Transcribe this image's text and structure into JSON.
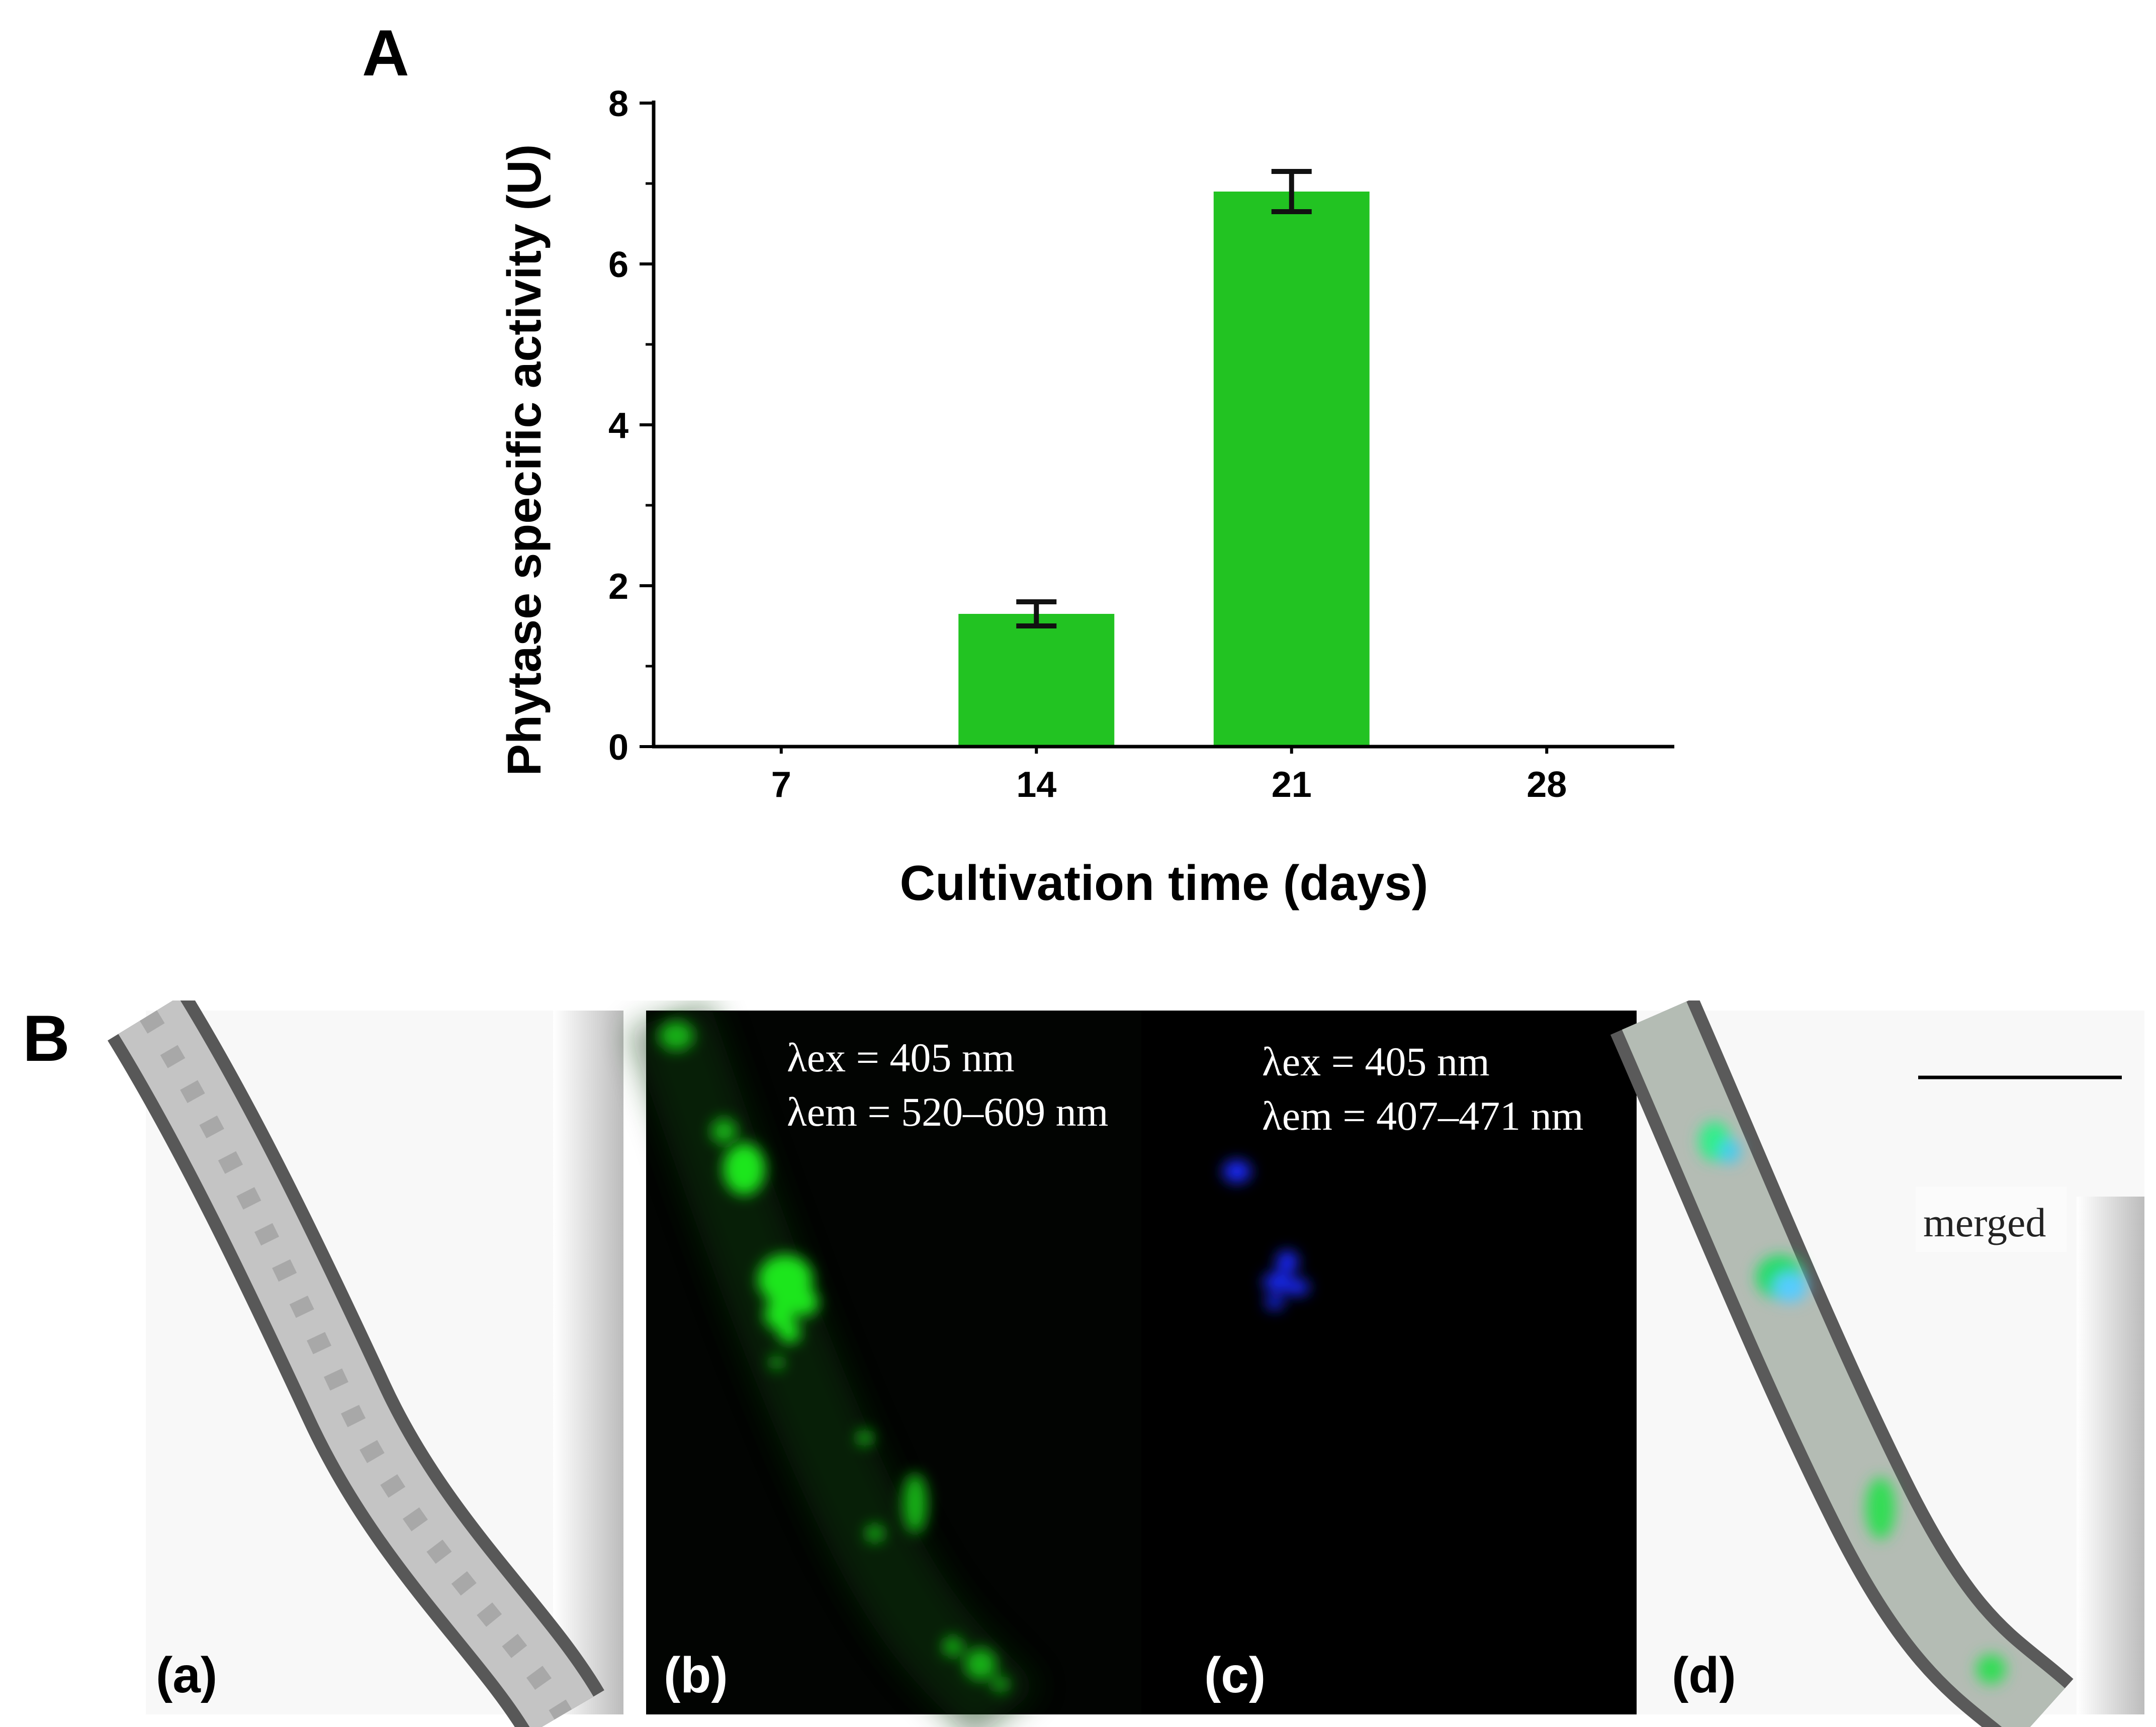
{
  "panel_a": {
    "letter": "A",
    "chart_data": {
      "type": "bar",
      "categories": [
        "7",
        "14",
        "21",
        "28"
      ],
      "values": [
        0,
        1.65,
        6.9,
        0
      ],
      "errors": [
        0,
        0.15,
        0.25,
        0
      ],
      "xlabel": "Cultivation time (days)",
      "ylabel": "Phytase specific activity (U)",
      "ylim": [
        0,
        8
      ],
      "yticks": [
        "0",
        "2",
        "4",
        "6",
        "8"
      ],
      "bar_color": "#22c322",
      "grid": false
    }
  },
  "panel_b": {
    "letter": "B",
    "subpanels": [
      {
        "label": "(a)",
        "label_color": "#000000"
      },
      {
        "label": "(b)",
        "label_color": "#ffffff",
        "annotation": [
          "λex = 405 nm",
          "λem = 520–609 nm"
        ]
      },
      {
        "label": "(c)",
        "label_color": "#ffffff",
        "annotation": [
          "λex = 405 nm",
          "λem = 407–471 nm"
        ]
      },
      {
        "label": "(d)",
        "label_color": "#000000",
        "extra": "merged"
      }
    ]
  }
}
